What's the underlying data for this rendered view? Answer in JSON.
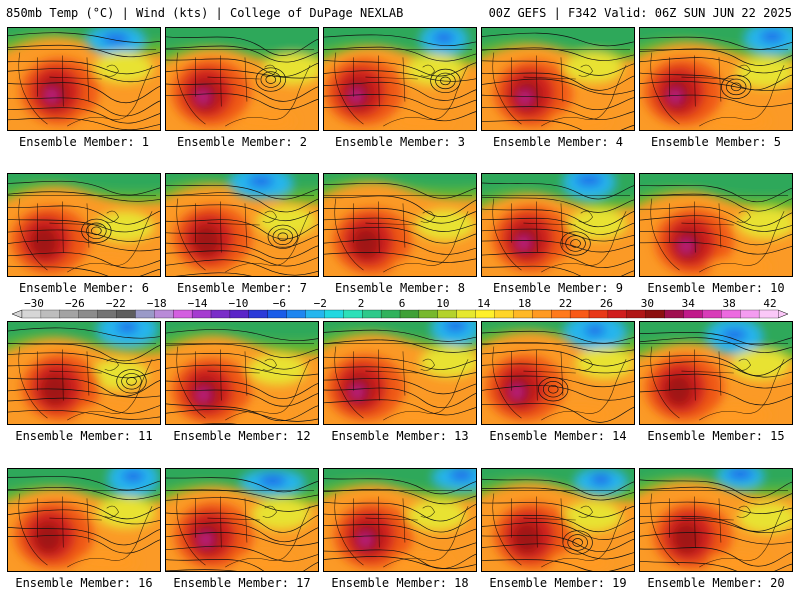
{
  "header": {
    "left": "850mb Temp (°C) | Wind (kts) | College of DuPage NEXLAB",
    "right": "00Z GEFS | F342 Valid: 06Z SUN JUN 22 2025"
  },
  "panels": [
    {
      "label": "Ensemble Member: 1",
      "member": 1
    },
    {
      "label": "Ensemble Member: 2",
      "member": 2
    },
    {
      "label": "Ensemble Member: 3",
      "member": 3
    },
    {
      "label": "Ensemble Member: 4",
      "member": 4
    },
    {
      "label": "Ensemble Member: 5",
      "member": 5
    },
    {
      "label": "Ensemble Member: 6",
      "member": 6
    },
    {
      "label": "Ensemble Member: 7",
      "member": 7
    },
    {
      "label": "Ensemble Member: 8",
      "member": 8
    },
    {
      "label": "Ensemble Member: 9",
      "member": 9
    },
    {
      "label": "Ensemble Member: 10",
      "member": 10
    },
    {
      "label": "Ensemble Member: 11",
      "member": 11
    },
    {
      "label": "Ensemble Member: 12",
      "member": 12
    },
    {
      "label": "Ensemble Member: 13",
      "member": 13
    },
    {
      "label": "Ensemble Member: 14",
      "member": 14
    },
    {
      "label": "Ensemble Member: 15",
      "member": 15
    },
    {
      "label": "Ensemble Member: 16",
      "member": 16
    },
    {
      "label": "Ensemble Member: 17",
      "member": 17
    },
    {
      "label": "Ensemble Member: 18",
      "member": 18
    },
    {
      "label": "Ensemble Member: 19",
      "member": 19
    },
    {
      "label": "Ensemble Member: 20",
      "member": 20
    }
  ],
  "colorbar": {
    "labels": [
      "−30",
      "−26",
      "−22",
      "−18",
      "−14",
      "−10",
      "−6",
      "−2",
      "2",
      "6",
      "10",
      "14",
      "18",
      "22",
      "26",
      "30",
      "34",
      "38",
      "42"
    ],
    "colors": [
      "#d6d6d6",
      "#bdbdbd",
      "#a3a3a3",
      "#8c8c8c",
      "#737373",
      "#5e5e5e",
      "#9a9ac8",
      "#b98bd8",
      "#d35fe0",
      "#a53cd0",
      "#7a2dc8",
      "#5a25c8",
      "#2b3ad8",
      "#1a5ce8",
      "#1e86f0",
      "#25b6ee",
      "#22d8e0",
      "#2de0b8",
      "#2ec98a",
      "#31b25c",
      "#3fa036",
      "#78b82e",
      "#b4d22c",
      "#e6e82e",
      "#fff02a",
      "#ffd528",
      "#ffb826",
      "#ff9a22",
      "#ff7a1c",
      "#f85a18",
      "#e83818",
      "#d01e1e",
      "#b01616",
      "#8c1010",
      "#a01050",
      "#c01a8a",
      "#d83cb8",
      "#ec6ae0",
      "#f49cf0",
      "#fbc8f8"
    ]
  }
}
